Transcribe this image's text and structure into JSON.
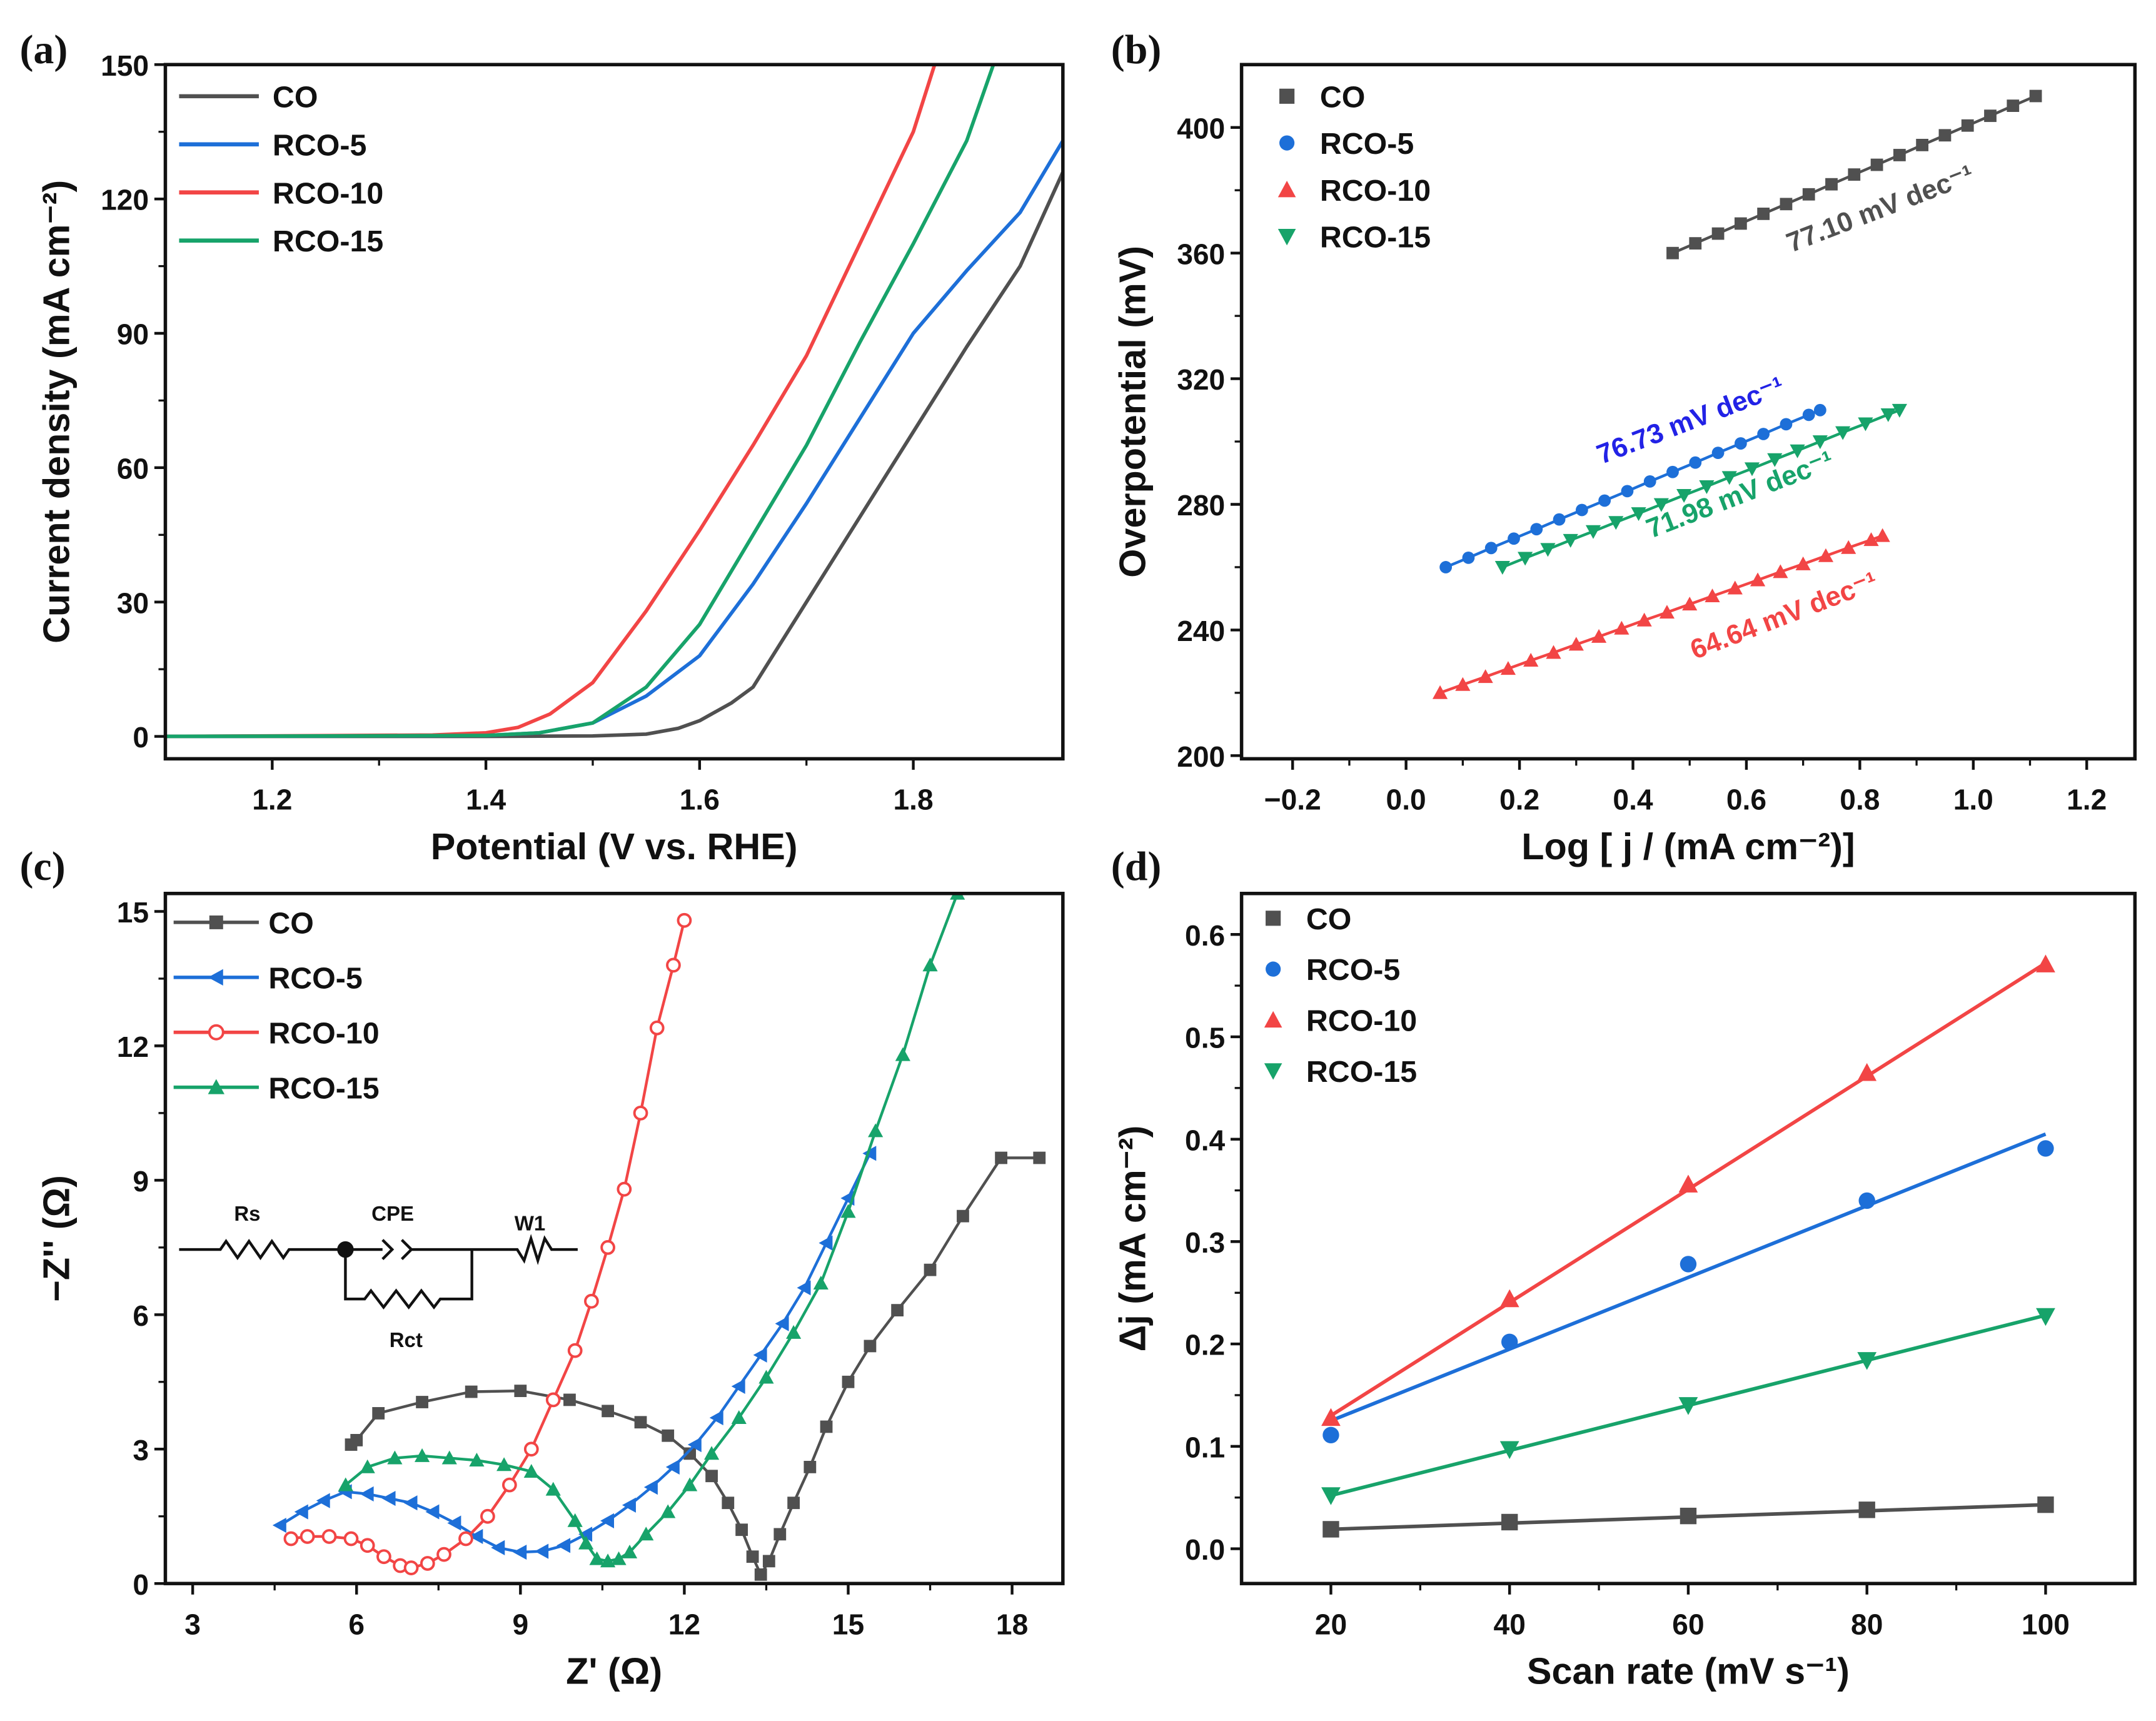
{
  "colors": {
    "CO": "#505050",
    "RCO-5": "#1d6fd8",
    "RCO-10": "#f24545",
    "RCO-15": "#17a36a",
    "annot_RCO-5": "#2222e6"
  },
  "chart_data": [
    {
      "panel_label": "(a)",
      "type": "line",
      "xlabel": "Potential (V vs. RHE)",
      "ylabel": "Current density (mA cm⁻²)",
      "xlim": [
        1.1,
        1.94
      ],
      "ylim": [
        -5,
        150
      ],
      "xticks": [
        "1.2",
        "1.4",
        "1.6",
        "1.8"
      ],
      "yticks": [
        "0",
        "30",
        "60",
        "90",
        "120",
        "150"
      ],
      "legend_position": "top-left",
      "series": [
        {
          "name": "CO",
          "x": [
            1.1,
            1.4,
            1.5,
            1.55,
            1.58,
            1.6,
            1.63,
            1.65,
            1.7,
            1.75,
            1.8,
            1.85,
            1.9,
            1.94
          ],
          "y": [
            0,
            0,
            0.1,
            0.5,
            1.8,
            3.5,
            7.5,
            11,
            30,
            49,
            68,
            87,
            105,
            126
          ]
        },
        {
          "name": "RCO-5",
          "x": [
            1.1,
            1.4,
            1.45,
            1.5,
            1.55,
            1.6,
            1.65,
            1.7,
            1.75,
            1.8,
            1.85,
            1.9,
            1.94
          ],
          "y": [
            0,
            0.2,
            0.8,
            3,
            9,
            18,
            34,
            52,
            71,
            90,
            104,
            117,
            133
          ]
        },
        {
          "name": "RCO-10",
          "x": [
            1.1,
            1.35,
            1.4,
            1.43,
            1.46,
            1.5,
            1.55,
            1.6,
            1.65,
            1.7,
            1.75,
            1.8,
            1.82
          ],
          "y": [
            0,
            0.3,
            0.8,
            2,
            5,
            12,
            28,
            46,
            65,
            85,
            110,
            135,
            150
          ]
        },
        {
          "name": "RCO-15",
          "x": [
            1.1,
            1.4,
            1.45,
            1.5,
            1.55,
            1.6,
            1.65,
            1.7,
            1.75,
            1.8,
            1.85,
            1.875
          ],
          "y": [
            0,
            0.2,
            0.8,
            3,
            11,
            25,
            45,
            65,
            88,
            110,
            133,
            150
          ]
        }
      ]
    },
    {
      "panel_label": "(b)",
      "type": "scatter",
      "xlabel": "Log [ j / (mA cm⁻²)]",
      "ylabel": "Overpotential (mV)",
      "xlim": [
        -0.29,
        1.285
      ],
      "ylim": [
        199,
        420
      ],
      "xticks": [
        "−0.2",
        "0.0",
        "0.2",
        "0.4",
        "0.6",
        "0.8",
        "1.0",
        "1.2"
      ],
      "yticks": [
        "200",
        "240",
        "280",
        "320",
        "360",
        "400"
      ],
      "legend_position": "top-left",
      "series": [
        {
          "name": "CO",
          "marker": "square",
          "x": [
            0.47,
            0.51,
            0.55,
            0.59,
            0.63,
            0.67,
            0.71,
            0.75,
            0.79,
            0.83,
            0.87,
            0.91,
            0.95,
            0.99,
            1.03,
            1.07,
            1.11
          ],
          "y": [
            360,
            363.1,
            366.2,
            369.4,
            372.5,
            375.6,
            378.7,
            381.9,
            385.0,
            388.1,
            391.2,
            394.4,
            397.5,
            400.6,
            403.7,
            406.9,
            410
          ]
        },
        {
          "name": "RCO-5",
          "marker": "circle",
          "x": [
            0.07,
            0.11,
            0.15,
            0.19,
            0.23,
            0.27,
            0.31,
            0.35,
            0.39,
            0.43,
            0.47,
            0.51,
            0.55,
            0.59,
            0.63,
            0.67,
            0.71,
            0.73
          ],
          "y": [
            260,
            263.0,
            266.1,
            269.1,
            272.1,
            275.2,
            278.2,
            281.2,
            284.2,
            287.3,
            290.3,
            293.3,
            296.4,
            299.4,
            302.4,
            305.5,
            308.5,
            310
          ]
        },
        {
          "name": "RCO-10",
          "marker": "triangle-up",
          "x": [
            0.06,
            0.1,
            0.14,
            0.18,
            0.22,
            0.26,
            0.3,
            0.34,
            0.38,
            0.42,
            0.46,
            0.5,
            0.54,
            0.58,
            0.62,
            0.66,
            0.7,
            0.74,
            0.78,
            0.82,
            0.84
          ],
          "y": [
            220,
            222.6,
            225.1,
            227.7,
            230.3,
            232.8,
            235.4,
            237.9,
            240.5,
            243.1,
            245.6,
            248.2,
            250.8,
            253.3,
            255.9,
            258.5,
            261,
            263.6,
            266.2,
            268.7,
            270
          ]
        },
        {
          "name": "RCO-15",
          "marker": "triangle-down",
          "x": [
            0.17,
            0.21,
            0.25,
            0.29,
            0.33,
            0.37,
            0.41,
            0.45,
            0.49,
            0.53,
            0.57,
            0.61,
            0.65,
            0.69,
            0.73,
            0.77,
            0.81,
            0.85,
            0.87
          ],
          "y": [
            260,
            262.9,
            265.7,
            268.6,
            271.4,
            274.3,
            277.1,
            280,
            282.9,
            285.7,
            288.6,
            291.4,
            294.3,
            297.1,
            300,
            302.9,
            305.7,
            308.6,
            310
          ]
        }
      ],
      "annotations": [
        {
          "series": "CO",
          "text": "77.10 mV dec⁻¹"
        },
        {
          "series": "RCO-5",
          "text": "76.73 mV dec⁻¹"
        },
        {
          "series": "RCO-15",
          "text": "71.98 mV dec⁻¹"
        },
        {
          "series": "RCO-10",
          "text": "64.64 mV dec⁻¹"
        }
      ]
    },
    {
      "panel_label": "(c)",
      "type": "line",
      "xlabel": "Z' (Ω)",
      "ylabel": "−Z'' (Ω)",
      "xlim": [
        2.5,
        18.93
      ],
      "ylim": [
        0,
        15.4
      ],
      "xticks": [
        "3",
        "6",
        "9",
        "12",
        "15",
        "18"
      ],
      "yticks": [
        "0",
        "3",
        "6",
        "9",
        "12",
        "15"
      ],
      "legend_position": "top-left",
      "circuit_labels": {
        "rs": "Rs",
        "cpe": "CPE",
        "w1": "W1",
        "rct": "Rct"
      },
      "series": [
        {
          "name": "CO",
          "marker": "square",
          "x": [
            5.9,
            6.0,
            6.4,
            7.2,
            8.1,
            9.0,
            9.9,
            10.6,
            11.2,
            11.7,
            12.1,
            12.5,
            12.8,
            13.05,
            13.25,
            13.4,
            13.55,
            13.75,
            14.0,
            14.3,
            14.6,
            15.0,
            15.4,
            15.9,
            16.5,
            17.1,
            17.8,
            18.5
          ],
          "y": [
            3.1,
            3.2,
            3.8,
            4.05,
            4.28,
            4.3,
            4.1,
            3.85,
            3.6,
            3.3,
            2.9,
            2.4,
            1.8,
            1.2,
            0.6,
            0.2,
            0.5,
            1.1,
            1.8,
            2.6,
            3.5,
            4.5,
            5.3,
            6.1,
            7.0,
            8.2,
            9.5,
            9.5
          ]
        },
        {
          "name": "RCO-5",
          "marker": "triangle-left",
          "x": [
            4.6,
            5.0,
            5.4,
            5.8,
            6.2,
            6.6,
            7.0,
            7.4,
            7.8,
            8.2,
            8.6,
            9.0,
            9.4,
            9.8,
            10.2,
            10.6,
            11.0,
            11.4,
            11.8,
            12.2,
            12.6,
            13.0,
            13.4,
            13.8,
            14.2,
            14.6,
            15.0,
            15.4
          ],
          "y": [
            1.3,
            1.6,
            1.85,
            2.05,
            2.0,
            1.9,
            1.8,
            1.6,
            1.35,
            1.05,
            0.8,
            0.7,
            0.72,
            0.85,
            1.1,
            1.4,
            1.75,
            2.15,
            2.6,
            3.1,
            3.7,
            4.4,
            5.1,
            5.8,
            6.6,
            7.6,
            8.6,
            9.6
          ]
        },
        {
          "name": "RCO-10",
          "marker": "open-circle",
          "x": [
            4.8,
            5.1,
            5.5,
            5.9,
            6.2,
            6.5,
            6.8,
            7.0,
            7.3,
            7.6,
            8.0,
            8.4,
            8.8,
            9.2,
            9.6,
            10.0,
            10.3,
            10.6,
            10.9,
            11.2,
            11.5,
            11.8,
            12.0
          ],
          "y": [
            1.0,
            1.05,
            1.05,
            1.0,
            0.85,
            0.6,
            0.4,
            0.35,
            0.45,
            0.65,
            1.0,
            1.5,
            2.2,
            3.0,
            4.1,
            5.2,
            6.3,
            7.5,
            8.8,
            10.5,
            12.4,
            13.8,
            14.8
          ]
        },
        {
          "name": "RCO-15",
          "marker": "triangle-up",
          "x": [
            5.8,
            6.2,
            6.7,
            7.2,
            7.7,
            8.2,
            8.7,
            9.2,
            9.6,
            10.0,
            10.2,
            10.4,
            10.6,
            10.8,
            11.0,
            11.3,
            11.7,
            12.1,
            12.5,
            13.0,
            13.5,
            14.0,
            14.5,
            15.0,
            15.5,
            16.0,
            16.5,
            17.0
          ],
          "y": [
            2.2,
            2.6,
            2.8,
            2.85,
            2.8,
            2.75,
            2.65,
            2.5,
            2.1,
            1.4,
            0.9,
            0.55,
            0.5,
            0.55,
            0.7,
            1.1,
            1.6,
            2.2,
            2.9,
            3.7,
            4.6,
            5.6,
            6.7,
            8.3,
            10.1,
            11.8,
            13.8,
            15.4
          ]
        }
      ]
    },
    {
      "panel_label": "(d)",
      "type": "scatter",
      "xlabel": "Scan rate (mV s⁻¹)",
      "ylabel": "Δj (mA cm⁻²)",
      "xlim": [
        10,
        110
      ],
      "ylim": [
        -0.034,
        0.64
      ],
      "xticks": [
        "20",
        "40",
        "60",
        "80",
        "100"
      ],
      "yticks": [
        "0.0",
        "0.1",
        "0.2",
        "0.3",
        "0.4",
        "0.5",
        "0.6"
      ],
      "legend_position": "top-left",
      "x": [
        20,
        40,
        60,
        80,
        100
      ],
      "series": [
        {
          "name": "CO",
          "marker": "square",
          "values": [
            0.019,
            0.026,
            0.032,
            0.038,
            0.043
          ],
          "fit": [
            0.019,
            0.043
          ]
        },
        {
          "name": "RCO-5",
          "marker": "circle",
          "values": [
            0.111,
            0.202,
            0.278,
            0.34,
            0.391
          ],
          "fit": [
            0.125,
            0.405
          ]
        },
        {
          "name": "RCO-10",
          "marker": "triangle-up",
          "values": [
            0.128,
            0.244,
            0.356,
            0.465,
            0.571
          ],
          "fit": [
            0.13,
            0.572
          ]
        },
        {
          "name": "RCO-15",
          "marker": "triangle-down",
          "values": [
            0.052,
            0.097,
            0.14,
            0.184,
            0.227
          ],
          "fit": [
            0.052,
            0.228
          ]
        }
      ]
    }
  ]
}
